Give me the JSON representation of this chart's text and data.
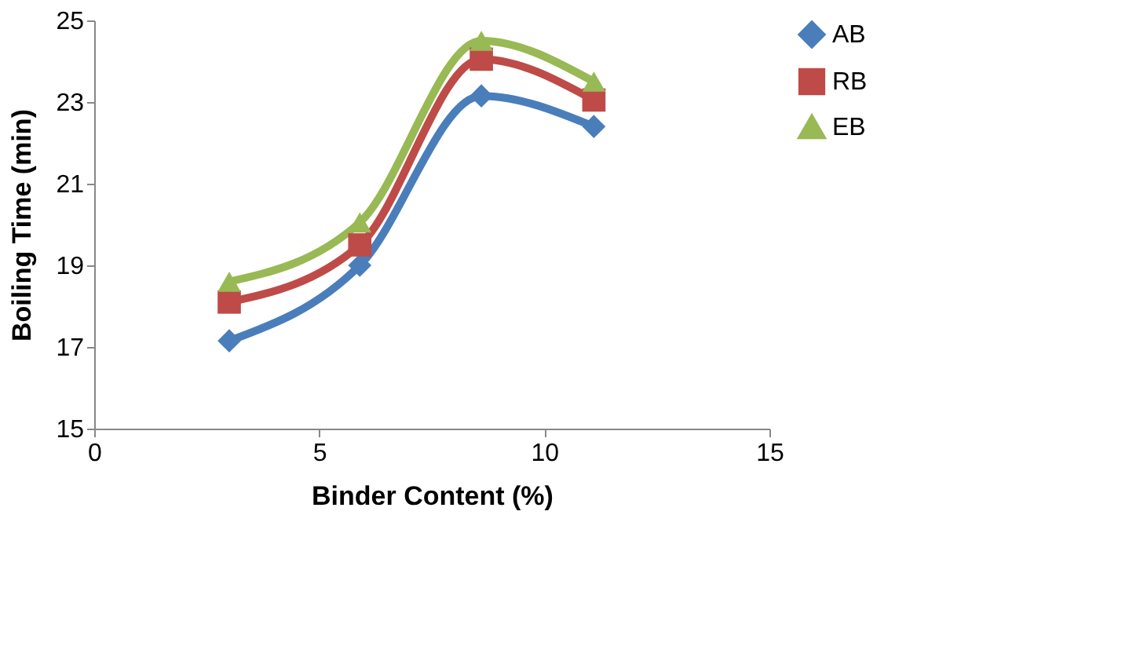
{
  "chart_data": {
    "type": "line",
    "xlabel": "Binder Content (%)",
    "ylabel": "Boiling Time (min)",
    "x": [
      3,
      5.9,
      8.6,
      11.1
    ],
    "series": [
      {
        "name": "AB",
        "color": "#4a7ebb",
        "marker": "diamond",
        "values": [
          17.15,
          19.0,
          23.15,
          22.4
        ]
      },
      {
        "name": "RB",
        "color": "#be4b48",
        "marker": "square",
        "values": [
          18.1,
          19.5,
          24.05,
          23.05
        ]
      },
      {
        "name": "EB",
        "color": "#98b954",
        "marker": "triangle",
        "values": [
          18.6,
          20.05,
          24.5,
          23.5
        ]
      }
    ],
    "xlim": [
      0,
      15
    ],
    "xticks": [
      0,
      5,
      10,
      15
    ],
    "ylim": [
      15,
      25
    ],
    "yticks": [
      15,
      17,
      19,
      21,
      23,
      25
    ],
    "grid": false,
    "legend": "right",
    "line_style": "solid"
  }
}
